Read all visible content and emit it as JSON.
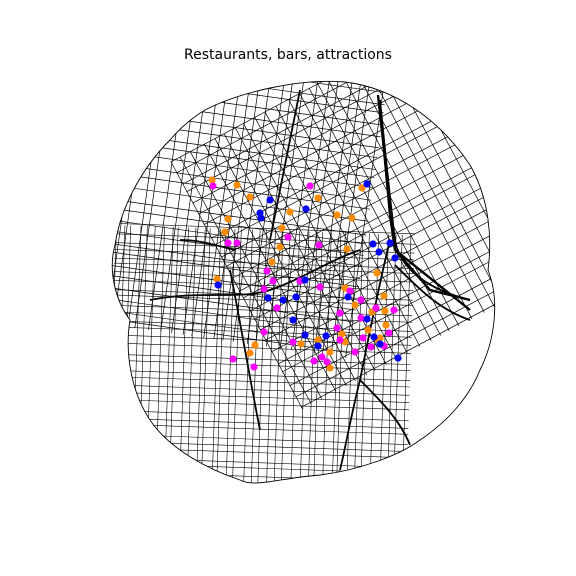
{
  "title": "Restaurants, bars, attractions",
  "colors": {
    "streets": "#000000",
    "background": "#ffffff",
    "restaurants": "#ff8c00",
    "bars": "#ff00ff",
    "attractions": "#0000ff"
  },
  "layers": [
    {
      "name": "restaurants",
      "color": "#ff8c00"
    },
    {
      "name": "bars",
      "color": "#ff00ff"
    },
    {
      "name": "attractions",
      "color": "#0000ff"
    }
  ]
}
